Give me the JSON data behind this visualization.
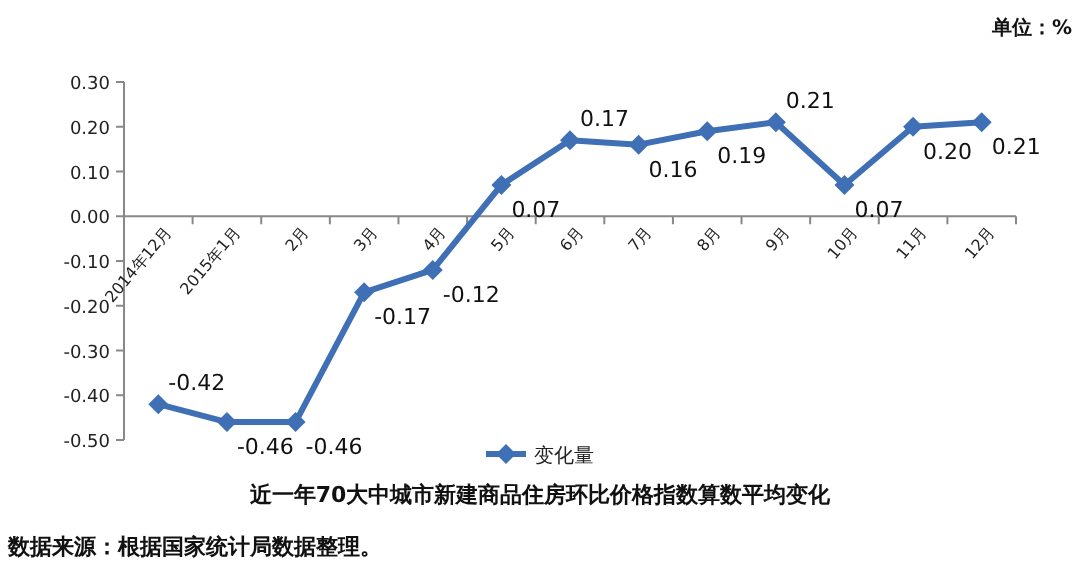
{
  "chart_data": {
    "type": "line",
    "title": "近一年70大中城市新建商品住房环比价格指数算数平均变化",
    "categories": [
      "2014年12月",
      "2015年1月",
      "2月",
      "3月",
      "4月",
      "5月",
      "6月",
      "7月",
      "8月",
      "9月",
      "10月",
      "11月",
      "12月"
    ],
    "series": [
      {
        "name": "变化量",
        "color": "#3f6fb5",
        "values": [
          -0.42,
          -0.46,
          -0.46,
          -0.17,
          -0.12,
          0.07,
          0.17,
          0.16,
          0.19,
          0.21,
          0.07,
          0.2,
          0.21
        ],
        "value_labels": [
          "-0.42",
          "-0.46",
          "-0.46",
          "-0.17",
          "-0.12",
          "0.07",
          "0.17",
          "0.16",
          "0.19",
          "0.21",
          "0.07",
          "0.20",
          "0.21"
        ]
      }
    ],
    "ylim": [
      -0.5,
      0.3
    ],
    "yticks": [
      {
        "value": -0.5,
        "label": "-0.50"
      },
      {
        "value": -0.4,
        "label": "-0.40"
      },
      {
        "value": -0.3,
        "label": "-0.30"
      },
      {
        "value": -0.2,
        "label": "-0.20"
      },
      {
        "value": -0.1,
        "label": "-0.10"
      },
      {
        "value": 0,
        "label": "0.00"
      },
      {
        "value": 0.1,
        "label": "0.10"
      },
      {
        "value": 0.2,
        "label": "0.20"
      },
      {
        "value": 0.3,
        "label": "0.30"
      }
    ],
    "marker": "diamond",
    "legend": "bottom",
    "grid": false,
    "annotations": [
      "单位：%",
      "数据来源：根据国家统计局数据整理。"
    ]
  }
}
